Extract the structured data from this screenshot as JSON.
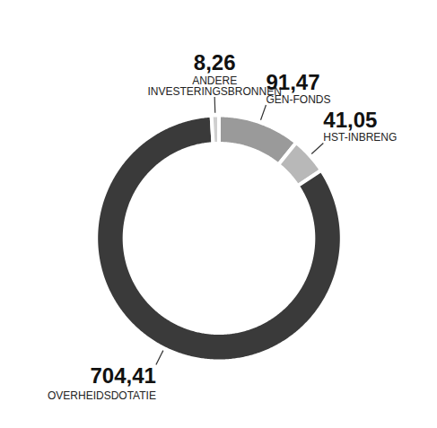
{
  "chart_data": {
    "type": "donut",
    "categories": [
      "GEN-FONDS",
      "HST-INBRENG",
      "OVERHEIDSDOTATIE",
      "ANDERE\nINVESTERINGSBRONNEN"
    ],
    "values": [
      91.47,
      41.05,
      704.41,
      8.26
    ],
    "value_labels": [
      "91,47",
      "41,05",
      "704,41",
      "8,26"
    ],
    "colors": [
      "#9a9a9a",
      "#b8b8b8",
      "#3a3a3a",
      "#cfcfcf"
    ],
    "data_labels": true,
    "tick_labels": false
  }
}
